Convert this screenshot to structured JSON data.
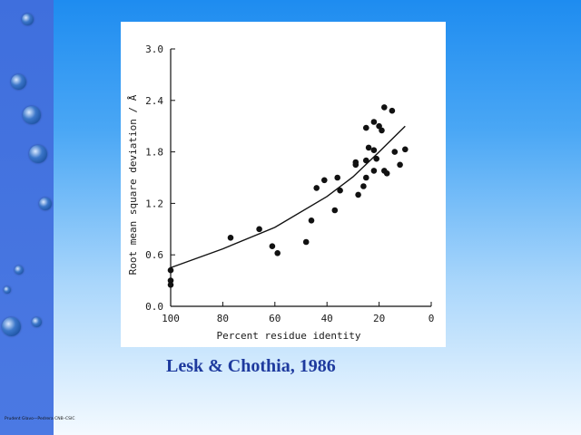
{
  "caption": "Lesk & Chothia, 1986",
  "footer_note": "Prudent Glavo—Pedrera CNB–CSIC",
  "colors": {
    "accent_text": "#1e3a9e",
    "side_strip": "#4b79e3",
    "points": "#111111"
  },
  "decoration": {
    "bubble_icon": "bubble-icon"
  },
  "chart_data": {
    "type": "scatter",
    "title": "",
    "xlabel": "Percent residue identity",
    "ylabel": "Root mean square deviation / Å",
    "xlim": [
      100,
      0
    ],
    "ylim": [
      0.0,
      3.0
    ],
    "x_ticks": [
      100,
      80,
      60,
      40,
      20,
      0
    ],
    "x_tick_labels": [
      "100",
      "80",
      "60",
      "40",
      "20",
      "0"
    ],
    "y_ticks": [
      0.0,
      0.6,
      1.2,
      1.8,
      2.4,
      3.0
    ],
    "y_tick_labels": [
      "0.0",
      "0.6",
      "1.2",
      "1.8",
      "2.4",
      "3.0"
    ],
    "grid": false,
    "series": [
      {
        "values": [
          {
            "x": 100,
            "y": 0.42
          },
          {
            "x": 100,
            "y": 0.3
          },
          {
            "x": 100,
            "y": 0.25
          },
          {
            "x": 77,
            "y": 0.8
          },
          {
            "x": 66,
            "y": 0.9
          },
          {
            "x": 61,
            "y": 0.7
          },
          {
            "x": 59,
            "y": 0.62
          },
          {
            "x": 48,
            "y": 0.75
          },
          {
            "x": 46,
            "y": 1.0
          },
          {
            "x": 44,
            "y": 1.38
          },
          {
            "x": 41,
            "y": 1.47
          },
          {
            "x": 37,
            "y": 1.12
          },
          {
            "x": 36,
            "y": 1.5
          },
          {
            "x": 35,
            "y": 1.35
          },
          {
            "x": 29,
            "y": 1.68
          },
          {
            "x": 29,
            "y": 1.65
          },
          {
            "x": 28,
            "y": 1.3
          },
          {
            "x": 26,
            "y": 1.4
          },
          {
            "x": 25,
            "y": 1.7
          },
          {
            "x": 25,
            "y": 1.5
          },
          {
            "x": 25,
            "y": 2.08
          },
          {
            "x": 24,
            "y": 1.85
          },
          {
            "x": 22,
            "y": 2.15
          },
          {
            "x": 22,
            "y": 1.82
          },
          {
            "x": 22,
            "y": 1.58
          },
          {
            "x": 21,
            "y": 1.72
          },
          {
            "x": 20,
            "y": 2.1
          },
          {
            "x": 19,
            "y": 2.05
          },
          {
            "x": 18,
            "y": 1.58
          },
          {
            "x": 18,
            "y": 2.32
          },
          {
            "x": 17,
            "y": 1.55
          },
          {
            "x": 15,
            "y": 2.28
          },
          {
            "x": 14,
            "y": 1.8
          },
          {
            "x": 12,
            "y": 1.65
          },
          {
            "x": 10,
            "y": 1.83
          }
        ]
      }
    ],
    "trend_line": [
      {
        "x": 100,
        "y": 0.45
      },
      {
        "x": 80,
        "y": 0.67
      },
      {
        "x": 60,
        "y": 0.92
      },
      {
        "x": 40,
        "y": 1.28
      },
      {
        "x": 30,
        "y": 1.51
      },
      {
        "x": 20,
        "y": 1.8
      },
      {
        "x": 10,
        "y": 2.1
      }
    ]
  }
}
